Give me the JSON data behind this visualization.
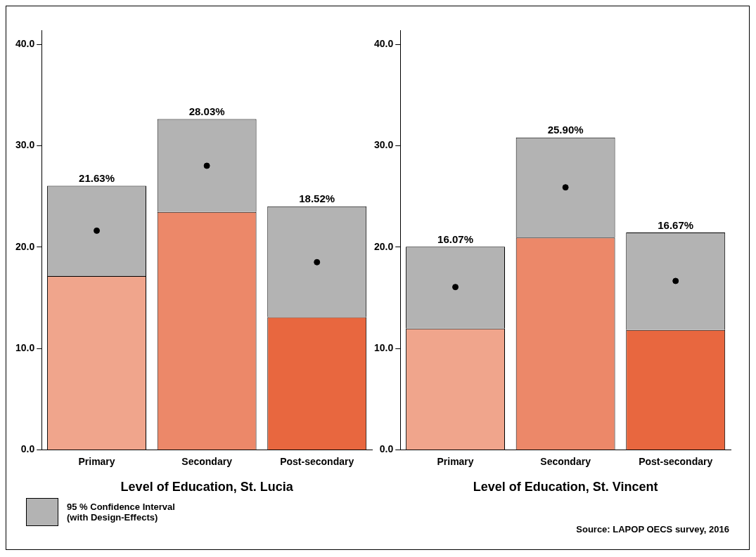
{
  "chart_data": [
    {
      "type": "bar",
      "stacked": true,
      "xlabel": "Level of Education, St. Lucia",
      "categories": [
        "Primary",
        "Secondary",
        "Post-secondary"
      ],
      "ylim": [
        0,
        41.4
      ],
      "yticks": [
        {
          "value": 0,
          "label": "0.0"
        },
        {
          "value": 10,
          "label": "10.0"
        },
        {
          "value": 20,
          "label": "20.0"
        },
        {
          "value": 30,
          "label": "30.0"
        },
        {
          "value": 40,
          "label": "40.0"
        }
      ],
      "grid": false,
      "legend": "bottom left",
      "series": [
        {
          "colors": [
            "#f0a58c",
            "#ec8869",
            "#e8673f"
          ],
          "values": [
            17.16,
            23.47,
            13.1
          ]
        },
        {
          "name": "95 % Confidence Interval\n(with Design-Effects)",
          "color": "#b3b3b3",
          "values": [
            8.9,
            9.17,
            10.93
          ]
        },
        {
          "type": "scatter",
          "color": "#000000",
          "marker": "circle",
          "values": [
            21.63,
            28.03,
            18.52
          ]
        }
      ],
      "annotations": [
        {
          "text": "21.63%",
          "x": "Primary",
          "y": 26.06
        },
        {
          "text": "28.03%",
          "x": "Secondary",
          "y": 32.64
        },
        {
          "text": "18.52%",
          "x": "Post-secondary",
          "y": 24.03
        }
      ]
    },
    {
      "type": "bar",
      "stacked": true,
      "xlabel": "Level of Education, St. Vincent",
      "categories": [
        "Primary",
        "Secondary",
        "Post-secondary"
      ],
      "ylim": [
        0,
        41.4
      ],
      "yticks": [
        {
          "value": 0,
          "label": "0.0"
        },
        {
          "value": 10,
          "label": "10.0"
        },
        {
          "value": 20,
          "label": "20.0"
        },
        {
          "value": 30,
          "label": "30.0"
        },
        {
          "value": 40,
          "label": "40.0"
        }
      ],
      "grid": false,
      "series": [
        {
          "colors": [
            "#f0a58c",
            "#ec8869",
            "#e8673f"
          ],
          "values": [
            11.98,
            20.95,
            11.84
          ]
        },
        {
          "color": "#b3b3b3",
          "values": [
            8.06,
            9.87,
            9.6
          ]
        },
        {
          "type": "scatter",
          "color": "#000000",
          "marker": "circle",
          "values": [
            16.07,
            25.9,
            16.67
          ]
        }
      ],
      "annotations": [
        {
          "text": "16.07%",
          "x": "Primary",
          "y": 20.04
        },
        {
          "text": "25.90%",
          "x": "Secondary",
          "y": 30.82
        },
        {
          "text": "16.67%",
          "x": "Post-secondary",
          "y": 21.44
        },
        "Source:  LAPOP OECS survey, 2016"
      ]
    }
  ]
}
